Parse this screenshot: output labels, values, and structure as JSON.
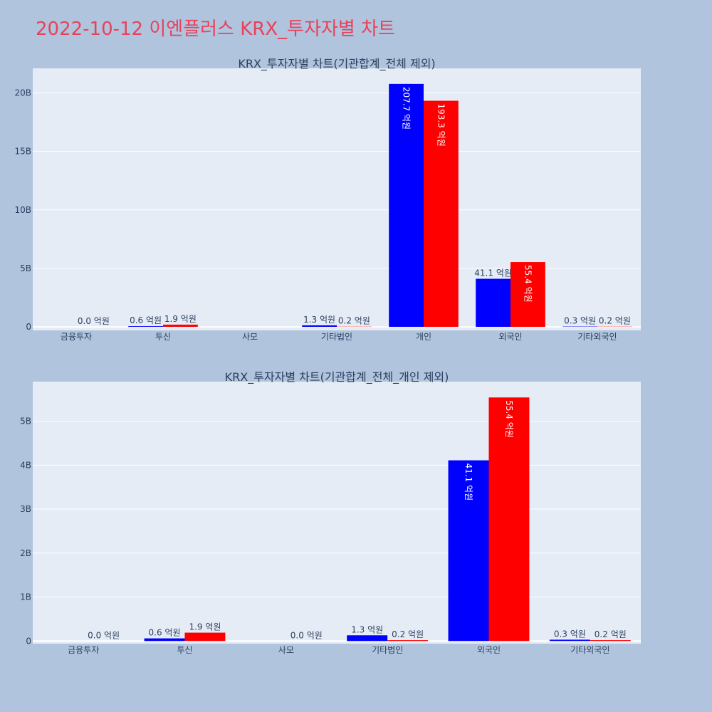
{
  "page": {
    "title": "2022-10-12 이엔플러스 KRX_투자자별 차트",
    "title_color": "#e8425a",
    "background": "#b0c4de",
    "plot_background": "#e5ecf6"
  },
  "chart_data": [
    {
      "type": "bar",
      "title": "KRX_투자자별 차트(기관합계_전체 제외)",
      "categories": [
        "금융투자",
        "투신",
        "사모",
        "기타법인",
        "개인",
        "외국인",
        "기타외국인"
      ],
      "series": [
        {
          "color": "#0000ff",
          "values": [
            null,
            0.06,
            null,
            0.13,
            20.77,
            4.11,
            0.03
          ],
          "labels": [
            "",
            "0.6 억원",
            "",
            "1.3 억원",
            "207.7 억원",
            "41.1 억원",
            "0.3 억원"
          ]
        },
        {
          "color": "#ff0000",
          "values": [
            0.0,
            0.19,
            null,
            0.02,
            19.33,
            5.54,
            0.02
          ],
          "labels": [
            "0.0 억원",
            "1.9 억원",
            "",
            "0.2 억원",
            "193.3 억원",
            "55.4 억원",
            "0.2 억원"
          ]
        }
      ],
      "ylim": [
        -0.3,
        22.1
      ],
      "yticks": [
        0,
        5,
        10,
        15,
        20
      ],
      "ytick_labels": [
        "0",
        "5B",
        "10B",
        "15B",
        "20B"
      ],
      "grid": true
    },
    {
      "type": "bar",
      "title": "KRX_투자자별 차트(기관합계_전체_개인 제외)",
      "categories": [
        "금융투자",
        "투신",
        "사모",
        "기타법인",
        "외국인",
        "기타외국인"
      ],
      "series": [
        {
          "color": "#0000ff",
          "values": [
            null,
            0.06,
            null,
            0.13,
            4.11,
            0.03
          ],
          "labels": [
            "",
            "0.6 억원",
            "",
            "1.3 억원",
            "41.1 억원",
            "0.3 억원"
          ]
        },
        {
          "color": "#ff0000",
          "values": [
            0.0,
            0.19,
            0.0,
            0.02,
            5.54,
            0.02
          ],
          "labels": [
            "0.0 억원",
            "1.9 억원",
            "0.0 억원",
            "0.2 억원",
            "55.4 억원",
            "0.2 억원"
          ]
        }
      ],
      "ylim": [
        -0.06,
        5.9
      ],
      "yticks": [
        0,
        1,
        2,
        3,
        4,
        5
      ],
      "ytick_labels": [
        "0",
        "1B",
        "2B",
        "3B",
        "4B",
        "5B"
      ],
      "grid": true
    }
  ]
}
